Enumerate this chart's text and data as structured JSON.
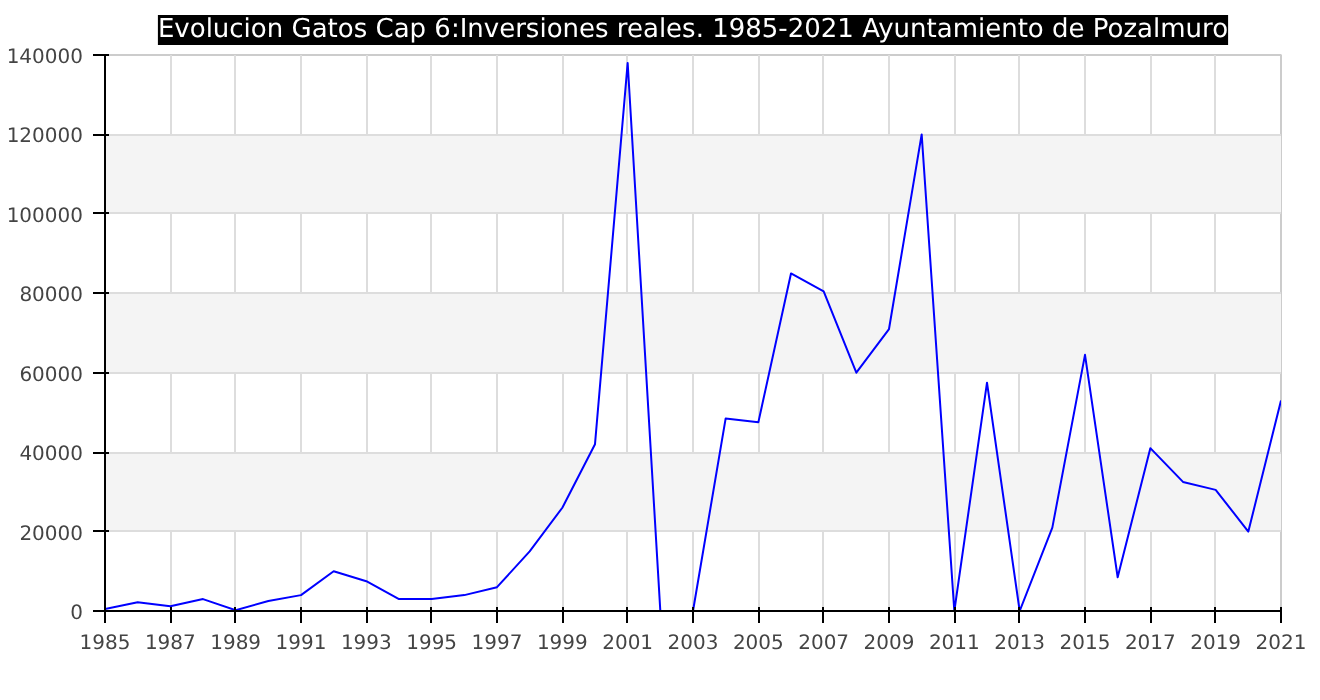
{
  "chart_data": {
    "type": "line",
    "title": "Evolucion Gatos Cap 6:Inversiones reales. 1985-2021 Ayuntamiento de Pozalmuro",
    "x": [
      1985,
      1986,
      1987,
      1988,
      1989,
      1990,
      1991,
      1992,
      1993,
      1994,
      1995,
      1996,
      1997,
      1998,
      1999,
      2000,
      2001,
      2002,
      2003,
      2004,
      2005,
      2006,
      2007,
      2008,
      2009,
      2010,
      2011,
      2012,
      2013,
      2014,
      2015,
      2016,
      2017,
      2018,
      2019,
      2020,
      2021
    ],
    "series": [
      {
        "color": "#0000ff",
        "values": [
          500,
          2200,
          1200,
          3000,
          200,
          2500,
          4000,
          10000,
          7500,
          3000,
          3000,
          4000,
          6000,
          15000,
          26000,
          42000,
          138000,
          0,
          0,
          48500,
          47500,
          85000,
          80500,
          60000,
          71000,
          120000,
          0,
          57500,
          0,
          21000,
          64500,
          8500,
          41000,
          32500,
          30500,
          20000,
          53000
        ]
      }
    ],
    "xlim": [
      1985,
      2021
    ],
    "xticks": [
      1985,
      1987,
      1989,
      1991,
      1993,
      1995,
      1997,
      1999,
      2001,
      2003,
      2005,
      2007,
      2009,
      2011,
      2013,
      2015,
      2017,
      2019,
      2021
    ],
    "ylim": [
      0,
      140000
    ],
    "yticks": [
      0,
      20000,
      40000,
      60000,
      80000,
      100000,
      120000,
      140000
    ],
    "grid": true,
    "marker": "none",
    "line_style": "solid"
  }
}
